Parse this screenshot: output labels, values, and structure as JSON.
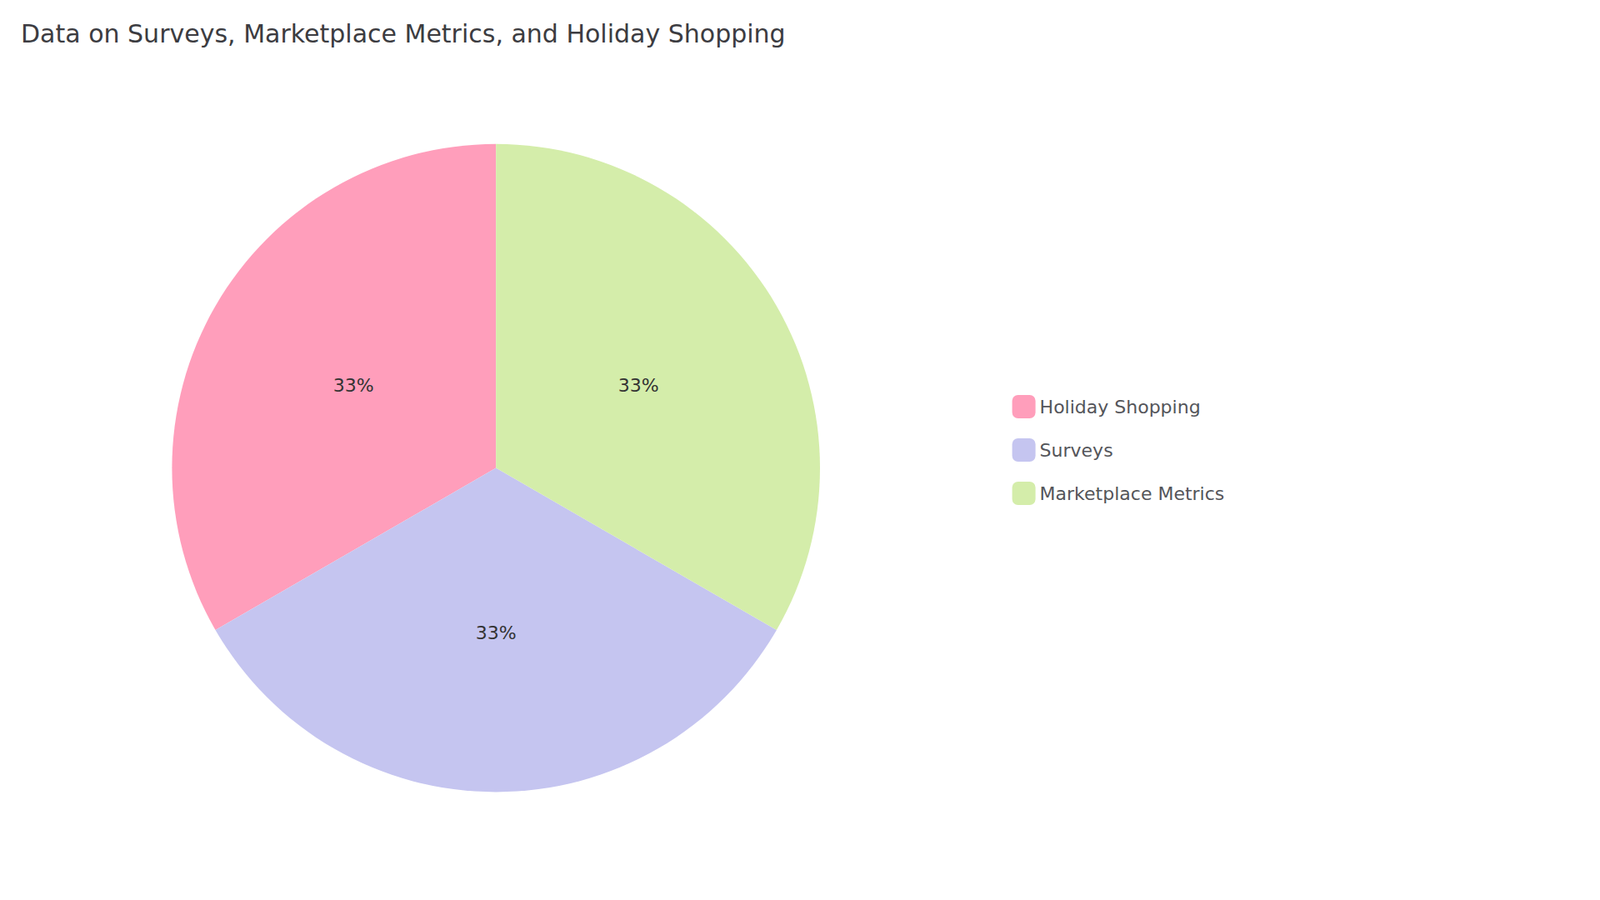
{
  "chart_data": {
    "type": "pie",
    "title": "Data on Surveys, Marketplace Metrics, and Holiday Shopping",
    "categories": [
      "Holiday Shopping",
      "Surveys",
      "Marketplace Metrics"
    ],
    "values": [
      33,
      33,
      33
    ],
    "value_labels": [
      "33%",
      "33%",
      "33%"
    ],
    "colors": [
      "#FF9EBB",
      "#C5C5F0",
      "#D4EDAA"
    ],
    "data_labels": true,
    "legend": "right"
  }
}
